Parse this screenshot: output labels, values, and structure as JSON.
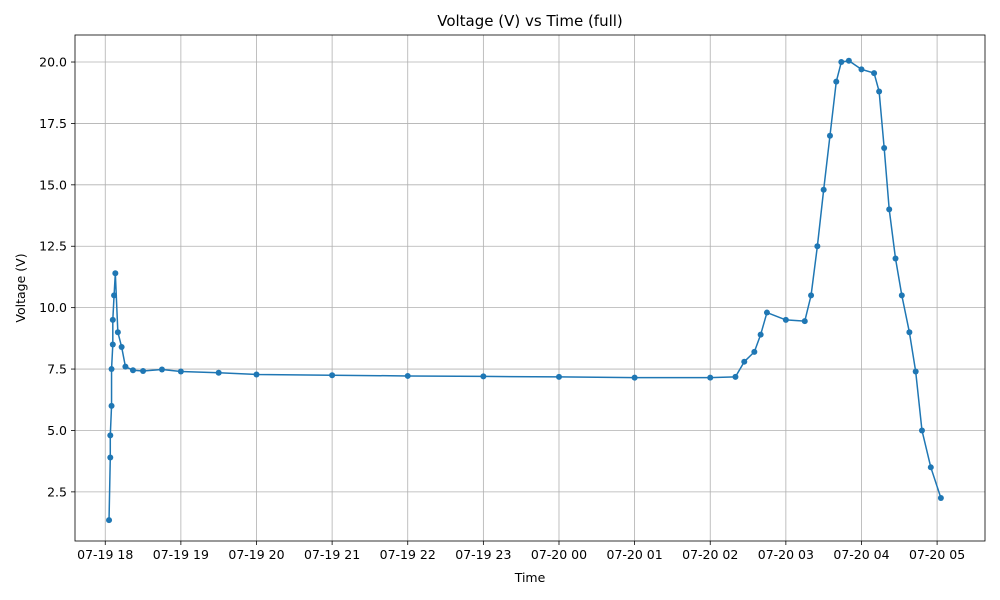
{
  "chart_data": {
    "type": "line",
    "title": "Voltage (V) vs Time (full)",
    "xlabel": "Time",
    "ylabel": "Voltage (V)",
    "grid": true,
    "marker": "circle",
    "line_color": "#1f77b4",
    "x_unit": "datetime",
    "xlim": [
      "2025-07-19 17:36",
      "2025-07-20 05:38"
    ],
    "ylim": [
      0.5,
      21.1
    ],
    "x_ticks": [
      "2025-07-19 18:00",
      "2025-07-19 19:00",
      "2025-07-19 20:00",
      "2025-07-19 21:00",
      "2025-07-19 22:00",
      "2025-07-19 23:00",
      "2025-07-20 00:00",
      "2025-07-20 01:00",
      "2025-07-20 02:00",
      "2025-07-20 03:00",
      "2025-07-20 04:00",
      "2025-07-20 05:00"
    ],
    "x_tick_labels": [
      "07-19 18",
      "07-19 19",
      "07-19 20",
      "07-19 21",
      "07-19 22",
      "07-19 23",
      "07-20 00",
      "07-20 01",
      "07-20 02",
      "07-20 03",
      "07-20 04",
      "07-20 05"
    ],
    "y_ticks": [
      2.5,
      5.0,
      7.5,
      10.0,
      12.5,
      15.0,
      17.5,
      20.0
    ],
    "y_tick_labels": [
      "2.5",
      "5.0",
      "7.5",
      "10.0",
      "12.5",
      "15.0",
      "17.5",
      "20.0"
    ],
    "series": [
      {
        "x": [
          "2025-07-19 18:03",
          "2025-07-19 18:04",
          "2025-07-19 18:04",
          "2025-07-19 18:05",
          "2025-07-19 18:05",
          "2025-07-19 18:06",
          "2025-07-19 18:06",
          "2025-07-19 18:07",
          "2025-07-19 18:08",
          "2025-07-19 18:10",
          "2025-07-19 18:13",
          "2025-07-19 18:16",
          "2025-07-19 18:22",
          "2025-07-19 18:30",
          "2025-07-19 18:45",
          "2025-07-19 19:00",
          "2025-07-19 19:30",
          "2025-07-19 20:00",
          "2025-07-19 21:00",
          "2025-07-19 22:00",
          "2025-07-19 23:00",
          "2025-07-20 00:00",
          "2025-07-20 01:00",
          "2025-07-20 02:00",
          "2025-07-20 02:20",
          "2025-07-20 02:27",
          "2025-07-20 02:35",
          "2025-07-20 02:40",
          "2025-07-20 02:45",
          "2025-07-20 03:00",
          "2025-07-20 03:15",
          "2025-07-20 03:20",
          "2025-07-20 03:25",
          "2025-07-20 03:30",
          "2025-07-20 03:35",
          "2025-07-20 03:40",
          "2025-07-20 03:44",
          "2025-07-20 03:50",
          "2025-07-20 04:00",
          "2025-07-20 04:10",
          "2025-07-20 04:14",
          "2025-07-20 04:18",
          "2025-07-20 04:22",
          "2025-07-20 04:27",
          "2025-07-20 04:32",
          "2025-07-20 04:38",
          "2025-07-20 04:43",
          "2025-07-20 04:48",
          "2025-07-20 04:55",
          "2025-07-20 05:03"
        ],
        "y": [
          1.35,
          3.9,
          4.8,
          6.0,
          7.5,
          8.5,
          9.5,
          10.5,
          11.4,
          9.0,
          8.4,
          7.6,
          7.45,
          7.42,
          7.48,
          7.4,
          7.35,
          7.28,
          7.25,
          7.22,
          7.2,
          7.18,
          7.15,
          7.15,
          7.18,
          7.8,
          8.2,
          8.9,
          9.8,
          9.5,
          9.45,
          10.5,
          12.5,
          14.8,
          17.0,
          19.2,
          20.0,
          20.05,
          19.7,
          19.55,
          18.8,
          16.5,
          14.0,
          12.0,
          10.5,
          9.0,
          7.4,
          5.0,
          3.5,
          2.25
        ]
      }
    ]
  }
}
